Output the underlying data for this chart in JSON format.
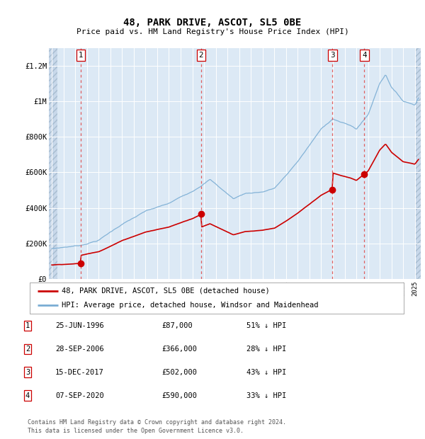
{
  "title": "48, PARK DRIVE, ASCOT, SL5 0BE",
  "subtitle": "Price paid vs. HM Land Registry's House Price Index (HPI)",
  "ylim": [
    0,
    1300000
  ],
  "xlim_start": 1993.75,
  "xlim_end": 2025.5,
  "hatch_end": 1994.5,
  "hatch_start_right": 2025.0,
  "bg_color": "#dce9f5",
  "hatch_face": "#c8d8ea",
  "hatch_edge": "#a8bdd0",
  "grid_color": "#ffffff",
  "sale_dates": [
    1996.48,
    2006.74,
    2017.96,
    2020.68
  ],
  "sale_prices": [
    87000,
    366000,
    502000,
    590000
  ],
  "sale_labels": [
    "1",
    "2",
    "3",
    "4"
  ],
  "sale_info": [
    {
      "label": "1",
      "date": "25-JUN-1996",
      "price": "£87,000",
      "hpi_diff": "51% ↓ HPI"
    },
    {
      "label": "2",
      "date": "28-SEP-2006",
      "price": "£366,000",
      "hpi_diff": "28% ↓ HPI"
    },
    {
      "label": "3",
      "date": "15-DEC-2017",
      "price": "£502,000",
      "hpi_diff": "43% ↓ HPI"
    },
    {
      "label": "4",
      "date": "07-SEP-2020",
      "price": "£590,000",
      "hpi_diff": "33% ↓ HPI"
    }
  ],
  "red_color": "#cc0000",
  "blue_color": "#7aadd4",
  "dash_color": "#e05050",
  "legend_red": "48, PARK DRIVE, ASCOT, SL5 0BE (detached house)",
  "legend_blue": "HPI: Average price, detached house, Windsor and Maidenhead",
  "footer": "Contains HM Land Registry data © Crown copyright and database right 2024.\nThis data is licensed under the Open Government Licence v3.0.",
  "ytick_labels": [
    "£0",
    "£200K",
    "£400K",
    "£600K",
    "£800K",
    "£1M",
    "£1.2M"
  ],
  "ytick_values": [
    0,
    200000,
    400000,
    600000,
    800000,
    1000000,
    1200000
  ],
  "fig_width": 6.0,
  "fig_height": 6.2,
  "dpi": 100
}
